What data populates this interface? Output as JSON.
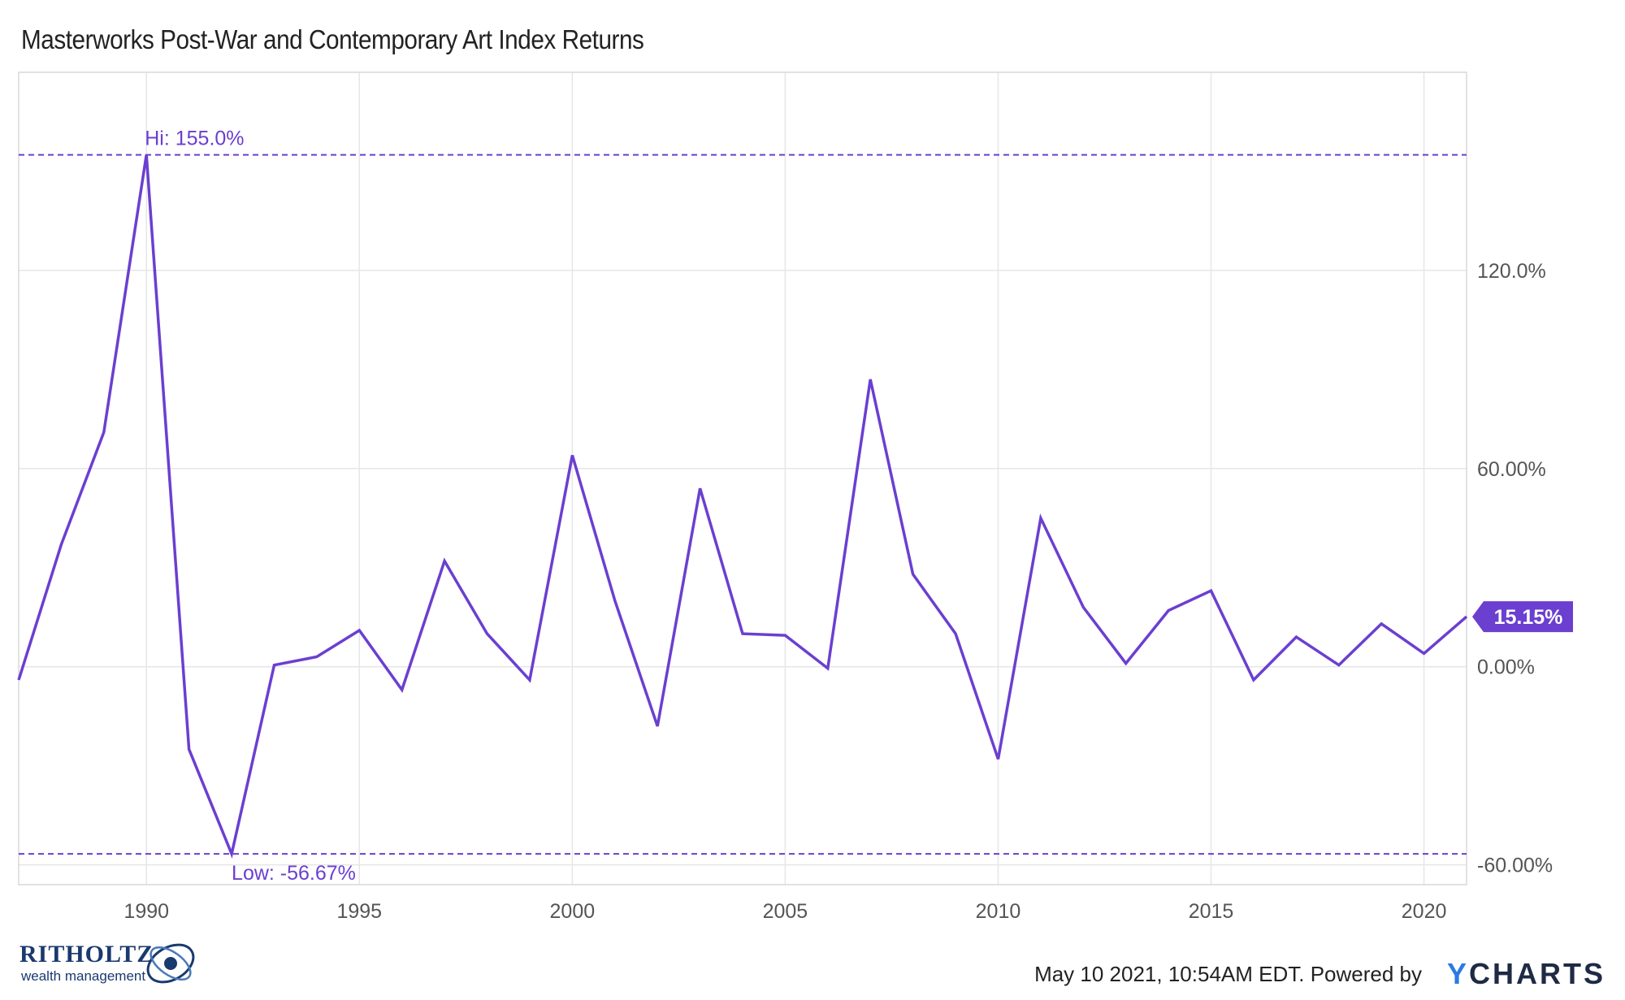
{
  "chart_data": {
    "type": "line",
    "title": "Masterworks Post-War and Contemporary Art Index Returns",
    "series": [
      {
        "name": "",
        "x": [
          1987,
          1988,
          1989,
          1990,
          1991,
          1992,
          1993,
          1994,
          1995,
          1996,
          1997,
          1998,
          1999,
          2000,
          2001,
          2002,
          2003,
          2004,
          2005,
          2006,
          2007,
          2008,
          2009,
          2010,
          2011,
          2012,
          2013,
          2014,
          2015,
          2016,
          2017,
          2018,
          2019,
          2020,
          2021
        ],
        "values": [
          -4,
          37,
          71,
          155.0,
          -25,
          -56.67,
          0.5,
          3,
          11,
          -7,
          32,
          10,
          -4,
          64,
          20,
          -18,
          54,
          10,
          9.5,
          -0.5,
          87,
          28,
          10,
          -28,
          45,
          18,
          1,
          17,
          23,
          -4,
          9,
          0.5,
          13,
          4,
          15.15
        ]
      }
    ],
    "xlim": [
      1987,
      2021
    ],
    "ylim": [
      -66,
      180
    ],
    "x_ticks": [
      "1990",
      "1995",
      "2000",
      "2005",
      "2010",
      "2015",
      "2020"
    ],
    "y_ticks": [
      "-60.00%",
      "0.00%",
      "60.00%",
      "120.0%"
    ],
    "annotations": {
      "high_label": "Hi: 155.0%",
      "low_label": "Low: -56.67%",
      "last_value_label": "15.15%"
    },
    "grid": true,
    "line_color": "#6b3fd0",
    "reference_line_color": "#6b3fd0"
  },
  "footer": {
    "timestamp": "May 10 2021, 10:54AM EDT. Powered by",
    "brand_y": "Y",
    "brand_rest": "CHARTS",
    "left_logo_name": "RITHOLTZ",
    "left_logo_sub": "wealth management"
  }
}
